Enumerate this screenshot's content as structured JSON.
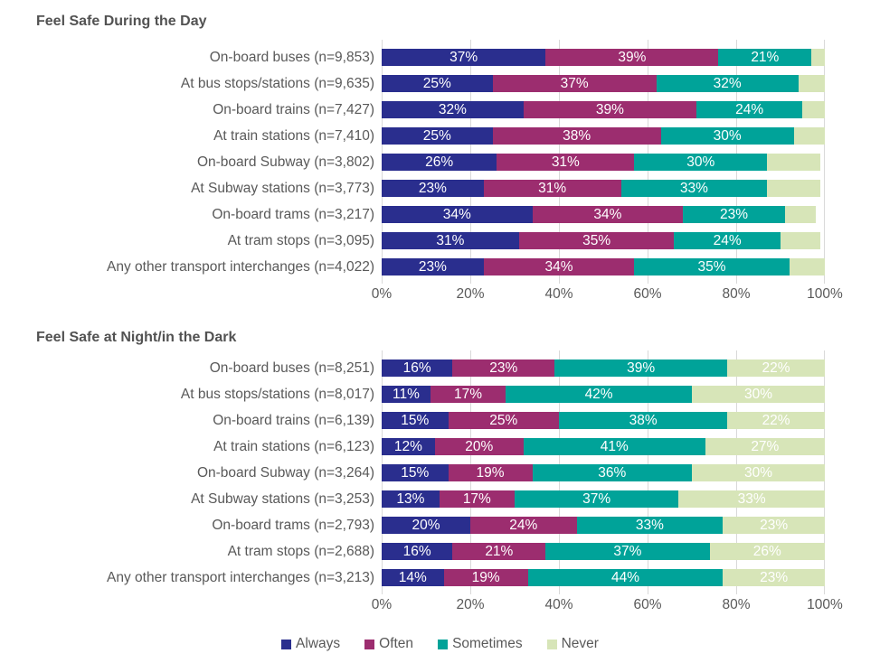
{
  "colors": {
    "always": "#2a2e8e",
    "often": "#9c2d6f",
    "sometimes": "#00a399",
    "never": "#d7e5b8",
    "text": "#595959",
    "gridline": "#d9d9d9",
    "bar_label": "#ffffff"
  },
  "legend": {
    "items": [
      {
        "label": "Always",
        "color": "#2a2e8e"
      },
      {
        "label": "Often",
        "color": "#9c2d6f"
      },
      {
        "label": "Sometimes",
        "color": "#00a399"
      },
      {
        "label": "Never",
        "color": "#d7e5b8"
      }
    ]
  },
  "chart_data": [
    {
      "type": "bar",
      "stacked": true,
      "orientation": "horizontal",
      "title": "Feel Safe During the Day",
      "categories": [
        "On-board buses (n=9,853)",
        "At bus stops/stations (n=9,635)",
        "On-board trains (n=7,427)",
        "At train stations (n=7,410)",
        "On-board Subway (n=3,802)",
        "At Subway stations (n=3,773)",
        "On-board trams (n=3,217)",
        "At tram stops (n=3,095)",
        "Any other transport interchanges (n=4,022)"
      ],
      "series": [
        {
          "name": "Always",
          "color": "#2a2e8e",
          "show_labels": true,
          "values": [
            37,
            25,
            32,
            25,
            26,
            23,
            34,
            31,
            23
          ]
        },
        {
          "name": "Often",
          "color": "#9c2d6f",
          "show_labels": true,
          "values": [
            39,
            37,
            39,
            38,
            31,
            31,
            34,
            35,
            34
          ]
        },
        {
          "name": "Sometimes",
          "color": "#00a399",
          "show_labels": true,
          "values": [
            21,
            32,
            24,
            30,
            30,
            33,
            23,
            24,
            35
          ]
        },
        {
          "name": "Never",
          "color": "#d7e5b8",
          "show_labels": false,
          "values": [
            3,
            6,
            5,
            7,
            12,
            12,
            7,
            9,
            8
          ]
        }
      ],
      "value_suffix": "%",
      "xlim": [
        0,
        100
      ],
      "x_ticks": [
        "0%",
        "20%",
        "40%",
        "60%",
        "80%",
        "100%"
      ],
      "grid": true,
      "legend_position": "bottom"
    },
    {
      "type": "bar",
      "stacked": true,
      "orientation": "horizontal",
      "title": "Feel Safe at Night/in the Dark",
      "categories": [
        "On-board buses (n=8,251)",
        "At bus stops/stations (n=8,017)",
        "On-board trains (n=6,139)",
        "At train stations (n=6,123)",
        "On-board Subway (n=3,264)",
        "At Subway stations (n=3,253)",
        "On-board trams (n=2,793)",
        "At tram stops (n=2,688)",
        "Any other transport interchanges (n=3,213)"
      ],
      "series": [
        {
          "name": "Always",
          "color": "#2a2e8e",
          "show_labels": true,
          "values": [
            16,
            11,
            15,
            12,
            15,
            13,
            20,
            16,
            14
          ]
        },
        {
          "name": "Often",
          "color": "#9c2d6f",
          "show_labels": true,
          "values": [
            23,
            17,
            25,
            20,
            19,
            17,
            24,
            21,
            19
          ]
        },
        {
          "name": "Sometimes",
          "color": "#00a399",
          "show_labels": true,
          "values": [
            39,
            42,
            38,
            41,
            36,
            37,
            33,
            37,
            44
          ]
        },
        {
          "name": "Never",
          "color": "#d7e5b8",
          "show_labels": true,
          "values": [
            22,
            30,
            22,
            27,
            30,
            33,
            23,
            26,
            23
          ]
        }
      ],
      "value_suffix": "%",
      "xlim": [
        0,
        100
      ],
      "x_ticks": [
        "0%",
        "20%",
        "40%",
        "60%",
        "80%",
        "100%"
      ],
      "grid": true,
      "legend_position": "bottom"
    }
  ]
}
